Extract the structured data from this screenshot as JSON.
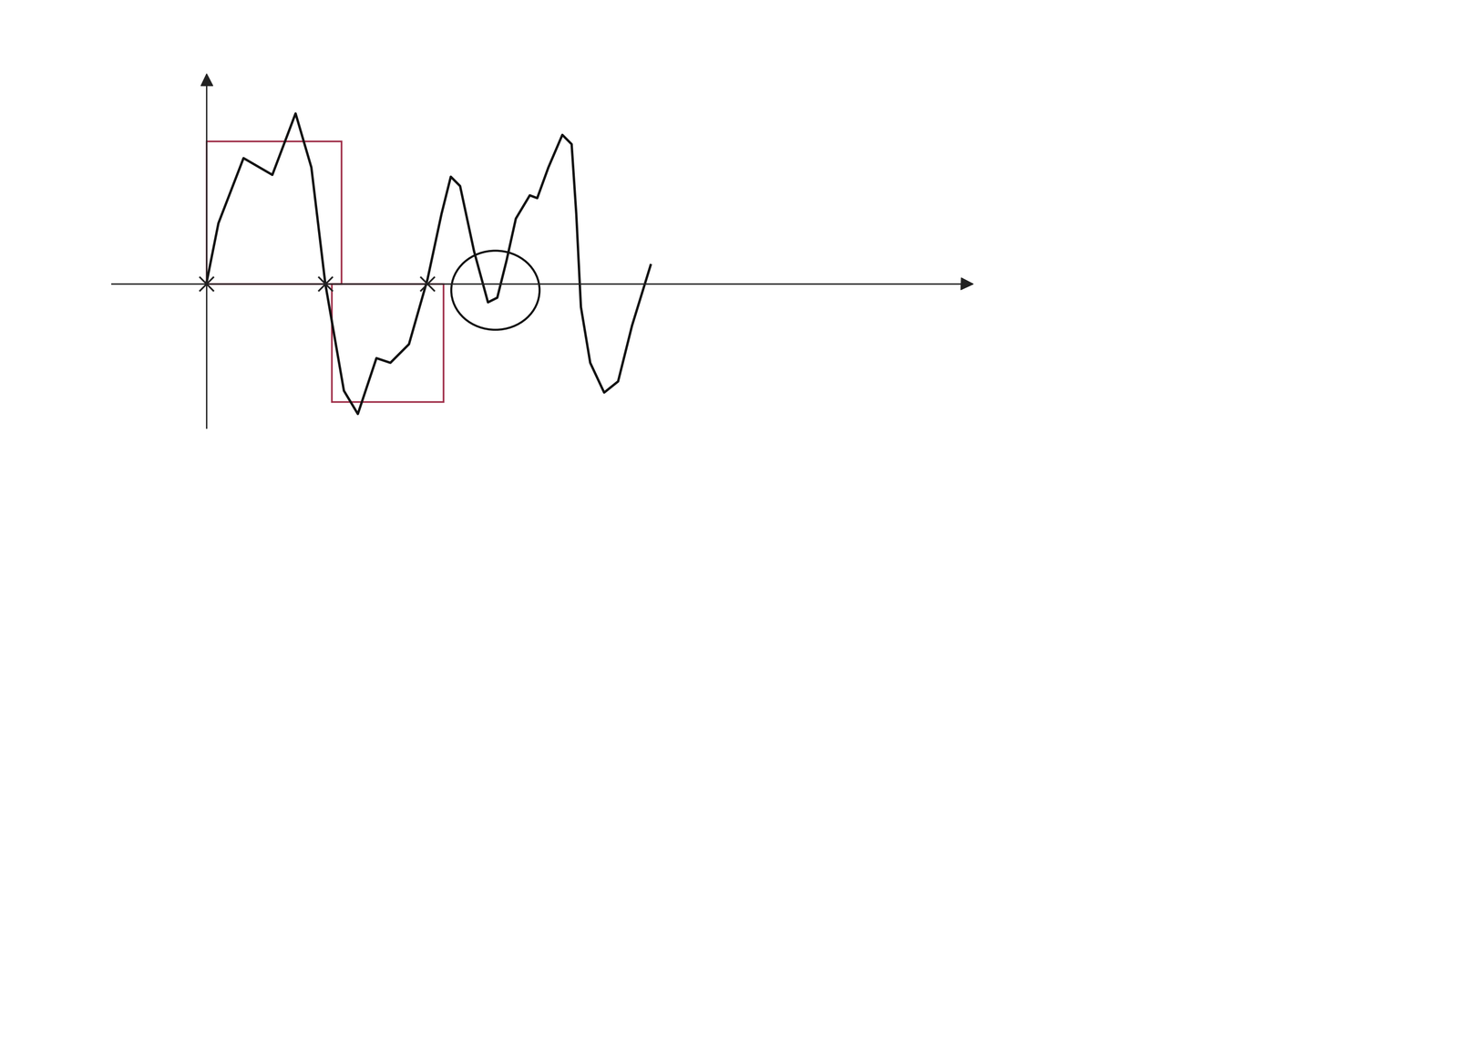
{
  "chart_data": {
    "type": "line",
    "x": [
      0,
      0.13,
      0.4,
      0.71,
      0.96,
      1.13,
      1.28,
      1.48,
      1.63,
      1.83,
      1.98,
      2.18,
      2.38,
      2.53,
      2.63,
      2.73,
      2.88,
      3.03,
      3.13,
      3.23,
      3.33,
      3.48,
      3.56,
      3.68,
      3.83,
      3.93,
      3.98,
      4.03,
      4.13,
      4.28,
      4.43,
      4.58,
      4.78
    ],
    "values": [
      0,
      0.65,
      1.35,
      1.17,
      1.83,
      1.25,
      0,
      -1.15,
      -1.4,
      -0.8,
      -0.85,
      -0.65,
      0.05,
      0.75,
      1.15,
      1.05,
      0.35,
      -0.2,
      -0.15,
      0.25,
      0.7,
      0.95,
      0.92,
      1.25,
      1.6,
      1.5,
      0.75,
      -0.25,
      -0.85,
      -1.17,
      -1.05,
      -0.45,
      0.2
    ],
    "color": "#111111",
    "xlim": [
      -1.02,
      8.18
    ],
    "ylim": [
      -1.55,
      2.2
    ],
    "xticks": [],
    "yticks": [],
    "tick_labels": false,
    "crossings": [
      0,
      1.28,
      2.38
    ],
    "boxes": [
      {
        "x": [
          0,
          1.45
        ],
        "y": [
          0,
          1.53
        ],
        "color": "#a0304a"
      },
      {
        "x": [
          1.35,
          2.55
        ],
        "y": [
          0,
          -1.27
        ],
        "color": "#a0304a"
      }
    ],
    "circle": {
      "center": [
        3.11,
        -0.07
      ],
      "width": 0.95,
      "height": 0.85,
      "color": "#111111"
    }
  }
}
